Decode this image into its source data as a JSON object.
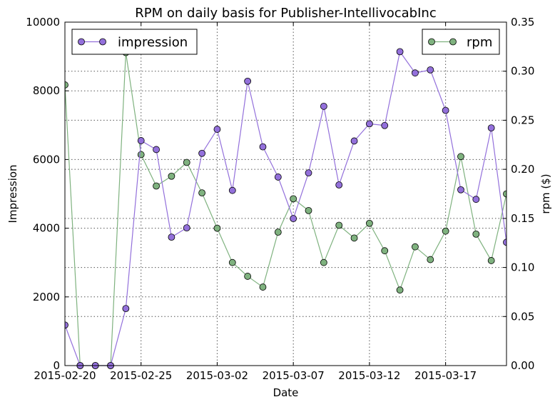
{
  "chart_data": {
    "type": "line",
    "title": "RPM on daily basis for Publisher-IntellivocabInc",
    "xlabel": "Date",
    "ylabel": "Impression",
    "y2label": "rpm ($)",
    "x_start": "2015-02-20",
    "xlim": [
      "2015-02-20",
      "2015-03-21"
    ],
    "x_ticks": [
      "2015-02-20",
      "2015-02-25",
      "2015-03-02",
      "2015-03-07",
      "2015-03-12",
      "2015-03-17"
    ],
    "ylim": [
      0,
      10000
    ],
    "y_ticks": [
      "0",
      "2000",
      "4000",
      "6000",
      "8000",
      "10000"
    ],
    "y2lim": [
      0,
      0.35
    ],
    "y2_ticks": [
      "0.00",
      "0.05",
      "0.10",
      "0.15",
      "0.20",
      "0.25",
      "0.30",
      "0.35"
    ],
    "grid": true,
    "series": [
      {
        "name": "impression",
        "axis": "left",
        "color": "#9370db",
        "legend_position": "top-left",
        "dates": [
          "2015-02-20",
          "2015-02-21",
          "2015-02-22",
          "2015-02-23",
          "2015-02-24",
          "2015-02-25",
          "2015-02-26",
          "2015-02-27",
          "2015-02-28",
          "2015-03-01",
          "2015-03-02",
          "2015-03-03",
          "2015-03-04",
          "2015-03-05",
          "2015-03-06",
          "2015-03-07",
          "2015-03-08",
          "2015-03-09",
          "2015-03-10",
          "2015-03-11",
          "2015-03-12",
          "2015-03-13",
          "2015-03-14",
          "2015-03-15",
          "2015-03-16",
          "2015-03-17",
          "2015-03-18",
          "2015-03-19",
          "2015-03-20",
          "2015-03-21"
        ],
        "values": [
          1180,
          0,
          0,
          0,
          1660,
          6550,
          6290,
          3740,
          4010,
          6180,
          6880,
          5100,
          8280,
          6370,
          5490,
          4280,
          5610,
          7550,
          5260,
          6540,
          7040,
          6990,
          9140,
          8520,
          8610,
          7430,
          5120,
          4840,
          6920,
          3590
        ]
      },
      {
        "name": "rpm",
        "axis": "right",
        "color": "#7fb27f",
        "legend_position": "top-right",
        "dates": [
          "2015-02-20",
          "2015-02-21",
          "2015-02-22",
          "2015-02-23",
          "2015-02-24",
          "2015-02-25",
          "2015-02-26",
          "2015-02-27",
          "2015-02-28",
          "2015-03-01",
          "2015-03-02",
          "2015-03-03",
          "2015-03-04",
          "2015-03-05",
          "2015-03-06",
          "2015-03-07",
          "2015-03-08",
          "2015-03-09",
          "2015-03-10",
          "2015-03-11",
          "2015-03-12",
          "2015-03-13",
          "2015-03-14",
          "2015-03-15",
          "2015-03-16",
          "2015-03-17",
          "2015-03-18",
          "2015-03-19",
          "2015-03-20",
          "2015-03-21"
        ],
        "values": [
          0.286,
          0.0,
          0.0,
          0.0,
          0.319,
          0.215,
          0.183,
          0.193,
          0.207,
          0.176,
          0.14,
          0.105,
          0.091,
          0.08,
          0.136,
          0.17,
          0.158,
          0.105,
          0.143,
          0.13,
          0.145,
          0.117,
          0.077,
          0.121,
          0.108,
          0.137,
          0.213,
          0.134,
          0.107,
          0.175
        ]
      }
    ]
  }
}
